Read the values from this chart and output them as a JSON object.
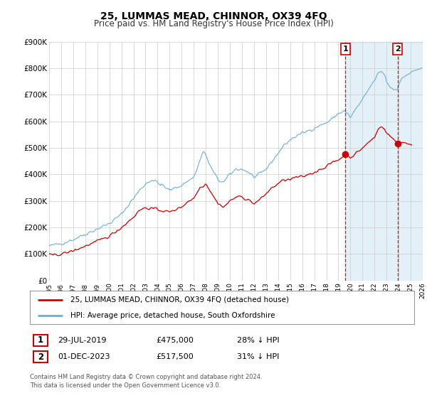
{
  "title": "25, LUMMAS MEAD, CHINNOR, OX39 4FQ",
  "subtitle": "Price paid vs. HM Land Registry's House Price Index (HPI)",
  "legend_line1": "25, LUMMAS MEAD, CHINNOR, OX39 4FQ (detached house)",
  "legend_line2": "HPI: Average price, detached house, South Oxfordshire",
  "footnote1": "Contains HM Land Registry data © Crown copyright and database right 2024.",
  "footnote2": "This data is licensed under the Open Government Licence v3.0.",
  "sale1_date": "29-JUL-2019",
  "sale1_price": "£475,000",
  "sale1_pct": "28% ↓ HPI",
  "sale1_year": 2019.58,
  "sale1_value": 475000,
  "sale2_date": "01-DEC-2023",
  "sale2_price": "£517,500",
  "sale2_pct": "31% ↓ HPI",
  "sale2_year": 2023.92,
  "sale2_value": 517500,
  "hpi_color": "#6baed6",
  "price_color": "#cc0000",
  "highlight_color": "#ddeeff",
  "plot_bg_color": "#ffffff",
  "xlim": [
    1995,
    2026
  ],
  "ylim": [
    0,
    900000
  ],
  "yticks": [
    0,
    100000,
    200000,
    300000,
    400000,
    500000,
    600000,
    700000,
    800000,
    900000
  ],
  "ytick_labels": [
    "£0",
    "£100K",
    "£200K",
    "£300K",
    "£400K",
    "£500K",
    "£600K",
    "£700K",
    "£800K",
    "£900K"
  ],
  "hpi_anchors_x": [
    1995.0,
    1995.5,
    1996.0,
    1997.0,
    1998.0,
    1999.0,
    2000.0,
    2001.0,
    2002.0,
    2002.5,
    2003.0,
    2003.5,
    2004.0,
    2005.0,
    2006.0,
    2007.0,
    2007.5,
    2007.8,
    2008.5,
    2009.0,
    2009.5,
    2010.0,
    2010.5,
    2011.0,
    2011.5,
    2012.0,
    2012.5,
    2013.0,
    2013.5,
    2014.0,
    2014.5,
    2015.0,
    2015.5,
    2016.0,
    2016.5,
    2017.0,
    2017.5,
    2018.0,
    2018.5,
    2019.0,
    2019.5,
    2020.0,
    2020.5,
    2021.0,
    2021.5,
    2022.0,
    2022.3,
    2022.6,
    2022.9,
    2023.0,
    2023.3,
    2023.6,
    2023.9,
    2024.0,
    2024.3,
    2024.6,
    2024.9,
    2025.3,
    2025.8
  ],
  "hpi_anchors_y": [
    130000,
    135000,
    140000,
    155000,
    175000,
    195000,
    215000,
    250000,
    310000,
    340000,
    365000,
    380000,
    370000,
    340000,
    360000,
    390000,
    450000,
    490000,
    420000,
    380000,
    370000,
    400000,
    420000,
    420000,
    410000,
    390000,
    400000,
    420000,
    450000,
    480000,
    510000,
    530000,
    545000,
    555000,
    565000,
    575000,
    585000,
    595000,
    610000,
    630000,
    640000,
    615000,
    650000,
    680000,
    720000,
    755000,
    780000,
    790000,
    770000,
    750000,
    730000,
    720000,
    725000,
    740000,
    760000,
    775000,
    780000,
    790000,
    800000
  ],
  "price_anchors_x": [
    1995.0,
    1995.5,
    1996.0,
    1997.0,
    1998.0,
    1999.0,
    2000.0,
    2001.0,
    2002.0,
    2002.5,
    2003.0,
    2004.0,
    2005.0,
    2006.0,
    2006.5,
    2007.0,
    2007.5,
    2008.0,
    2008.5,
    2009.0,
    2009.5,
    2010.0,
    2010.5,
    2011.0,
    2011.5,
    2012.0,
    2012.5,
    2013.0,
    2013.5,
    2014.0,
    2014.5,
    2015.0,
    2015.5,
    2016.0,
    2016.5,
    2017.0,
    2017.5,
    2018.0,
    2018.5,
    2019.0,
    2019.58,
    2020.0,
    2020.5,
    2021.0,
    2021.5,
    2022.0,
    2022.3,
    2022.6,
    2022.9,
    2023.0,
    2023.3,
    2023.6,
    2023.92,
    2024.1,
    2024.5,
    2024.9
  ],
  "price_anchors_y": [
    95000,
    97000,
    100000,
    112000,
    130000,
    148000,
    168000,
    200000,
    240000,
    265000,
    275000,
    268000,
    258000,
    278000,
    298000,
    310000,
    350000,
    365000,
    330000,
    290000,
    278000,
    300000,
    315000,
    315000,
    305000,
    290000,
    305000,
    328000,
    350000,
    365000,
    380000,
    380000,
    390000,
    390000,
    400000,
    408000,
    420000,
    430000,
    445000,
    455000,
    475000,
    465000,
    480000,
    500000,
    520000,
    540000,
    570000,
    585000,
    565000,
    555000,
    545000,
    530000,
    517500,
    520000,
    520000,
    515000
  ]
}
